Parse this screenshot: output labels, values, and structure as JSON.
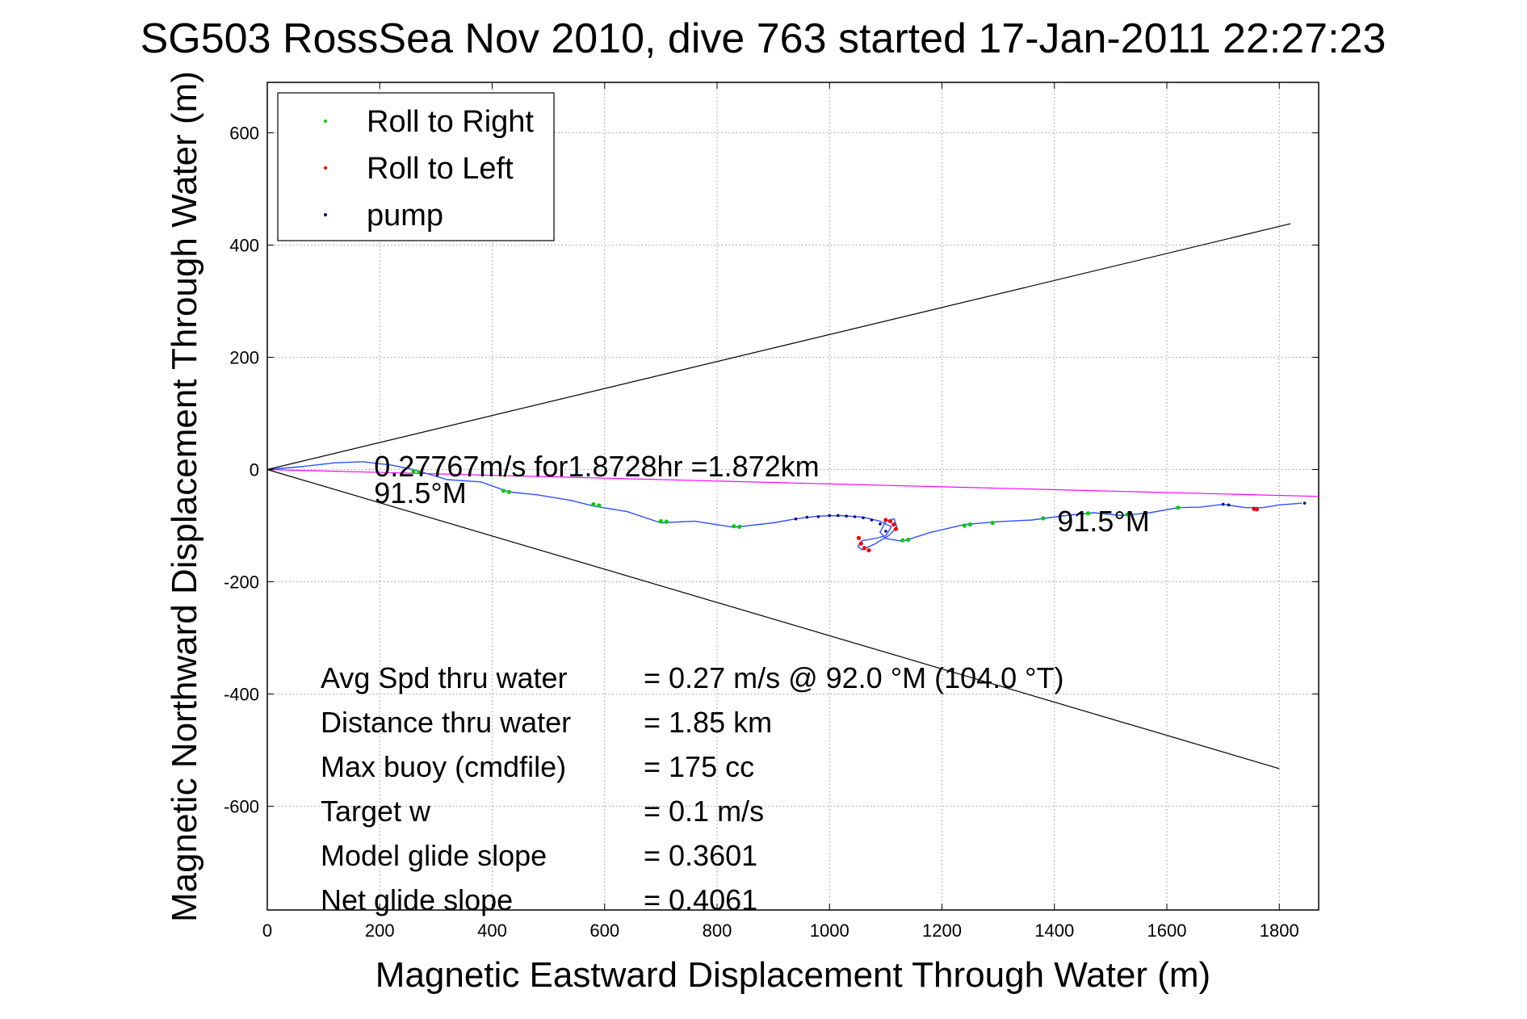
{
  "chart_data": {
    "type": "line",
    "title": "SG503 RossSea Nov 2010, dive 763 started 17-Jan-2011 22:27:23",
    "xlabel": "Magnetic Eastward Displacement Through Water (m)",
    "ylabel": "Magnetic Northward Displacement Through Water (m)",
    "xlim": [
      0,
      1870
    ],
    "ylim": [
      -785,
      690
    ],
    "xticks": [
      0,
      200,
      400,
      600,
      800,
      1000,
      1200,
      1400,
      1600,
      1800
    ],
    "xtick_labels": [
      "0",
      "200",
      "400",
      "600",
      "800",
      "1000",
      "1200",
      "1400",
      "1600",
      "1800"
    ],
    "yticks": [
      -600,
      -400,
      -200,
      0,
      200,
      400,
      600
    ],
    "ytick_labels": [
      "-600",
      "-400",
      "-200",
      "0",
      "200",
      "400",
      "600"
    ],
    "grid": true,
    "legend": {
      "placement": "top-left",
      "entries": [
        {
          "name": "Roll to Right",
          "color": "#00cc00"
        },
        {
          "name": "Roll to Left",
          "color": "#ee0000"
        },
        {
          "name": "pump",
          "color": "#000080"
        }
      ]
    },
    "series": [
      {
        "role": "track",
        "color": "#3050ff",
        "x": [
          0,
          60,
          120,
          170,
          220,
          260,
          320,
          380,
          430,
          480,
          540,
          580,
          640,
          700,
          760,
          830,
          900,
          940,
          980,
          1020,
          1060,
          1090,
          1110,
          1100,
          1080,
          1058,
          1050,
          1058,
          1080,
          1105,
          1120,
          1115,
          1100,
          1090,
          1100,
          1130,
          1180,
          1240,
          1300,
          1360,
          1420,
          1470,
          1520,
          1570,
          1620,
          1660,
          1700,
          1740,
          1770,
          1800,
          1840
        ],
        "y": [
          0,
          5,
          12,
          14,
          8,
          0,
          -18,
          -22,
          -40,
          -45,
          -55,
          -65,
          -75,
          -95,
          -92,
          -103,
          -95,
          -88,
          -83,
          -82,
          -85,
          -92,
          -102,
          -118,
          -123,
          -127,
          -137,
          -143,
          -133,
          -118,
          -103,
          -88,
          -92,
          -112,
          -123,
          -128,
          -112,
          -98,
          -93,
          -90,
          -82,
          -77,
          -82,
          -77,
          -68,
          -67,
          -62,
          -68,
          -68,
          -63,
          -60
        ]
      },
      {
        "role": "heading-line",
        "color": "#ff00ff",
        "x": [
          0,
          1870
        ],
        "y": [
          0,
          -48
        ]
      },
      {
        "role": "cone-upper",
        "color": "#000000",
        "x": [
          0,
          1820
        ],
        "y": [
          0,
          438
        ]
      },
      {
        "role": "cone-lower",
        "color": "#000000",
        "x": [
          0,
          1800
        ],
        "y": [
          0,
          -533
        ]
      }
    ],
    "markers": {
      "roll_right": {
        "color": "#00cc00",
        "x": [
          260,
          270,
          420,
          430,
          580,
          590,
          700,
          710,
          830,
          840,
          1130,
          1140,
          1240,
          1250,
          1290,
          1380,
          1460,
          1530,
          1620
        ],
        "y": [
          -3,
          -5,
          -38,
          -40,
          -62,
          -64,
          -92,
          -93,
          -101,
          -102,
          -126,
          -125,
          -100,
          -98,
          -95,
          -87,
          -78,
          -80,
          -68
        ]
      },
      "roll_left": {
        "color": "#ee0000",
        "x": [
          1052,
          1056,
          1062,
          1070,
          1100,
          1108,
          1114,
          1118,
          1755,
          1760
        ],
        "y": [
          -122,
          -132,
          -140,
          -144,
          -90,
          -92,
          -98,
          -106,
          -70,
          -71
        ]
      },
      "pump": {
        "color": "#000080",
        "x": [
          940,
          960,
          980,
          1000,
          1015,
          1030,
          1045,
          1060,
          1075,
          1090,
          1100,
          1700,
          1710,
          1845
        ],
        "y": [
          -88,
          -85,
          -84,
          -82,
          -82,
          -83,
          -84,
          -86,
          -90,
          -97,
          -110,
          -62,
          -63,
          -60
        ]
      }
    },
    "annotations": [
      {
        "text": "0.27767m/s for1.8728hr =1.872km",
        "x": 190,
        "y": -12
      },
      {
        "text": "91.5°M",
        "x": 190,
        "y": -60
      },
      {
        "text": "91.5°M",
        "x": 1405,
        "y": -110
      }
    ],
    "stats": [
      {
        "label": "Avg Spd thru water",
        "value": "=  0.27 m/s @  92.0 °M (104.0 °T)"
      },
      {
        "label": "Distance thru water",
        "value": "=  1.85 km"
      },
      {
        "label": "Max buoy (cmdfile)",
        "value": "= 175 cc"
      },
      {
        "label": "Target w",
        "value": "= 0.1 m/s"
      },
      {
        "label": "Model glide slope",
        "value": "= 0.3601"
      },
      {
        "label": "Net glide slope",
        "value": "= 0.4061"
      }
    ]
  }
}
